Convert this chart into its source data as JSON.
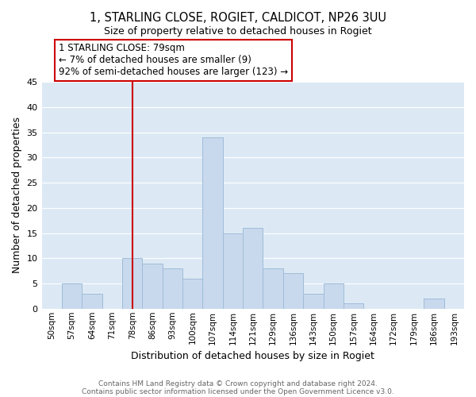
{
  "title": "1, STARLING CLOSE, ROGIET, CALDICOT, NP26 3UU",
  "subtitle": "Size of property relative to detached houses in Rogiet",
  "xlabel": "Distribution of detached houses by size in Rogiet",
  "ylabel": "Number of detached properties",
  "bin_labels": [
    "50sqm",
    "57sqm",
    "64sqm",
    "71sqm",
    "78sqm",
    "86sqm",
    "93sqm",
    "100sqm",
    "107sqm",
    "114sqm",
    "121sqm",
    "129sqm",
    "136sqm",
    "143sqm",
    "150sqm",
    "157sqm",
    "164sqm",
    "172sqm",
    "179sqm",
    "186sqm",
    "193sqm"
  ],
  "bar_heights": [
    0,
    5,
    3,
    0,
    10,
    9,
    8,
    6,
    34,
    15,
    16,
    8,
    7,
    3,
    5,
    1,
    0,
    0,
    0,
    2,
    0
  ],
  "bar_color": "#c8d9ed",
  "bar_edge_color": "#a0bcd8",
  "bg_color": "#dce9f5",
  "grid_color": "#ffffff",
  "vline_x": 4,
  "vline_color": "#cc0000",
  "annotation_text": "1 STARLING CLOSE: 79sqm\n← 7% of detached houses are smaller (9)\n92% of semi-detached houses are larger (123) →",
  "annotation_box_edge": "#cc0000",
  "annotation_box_face": "#ffffff",
  "ylim": [
    0,
    45
  ],
  "yticks": [
    0,
    5,
    10,
    15,
    20,
    25,
    30,
    35,
    40,
    45
  ],
  "footer1": "Contains HM Land Registry data © Crown copyright and database right 2024.",
  "footer2": "Contains public sector information licensed under the Open Government Licence v3.0.",
  "background_color": "#ffffff"
}
